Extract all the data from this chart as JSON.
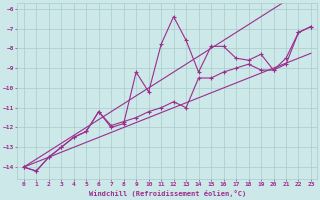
{
  "x": [
    0,
    1,
    2,
    3,
    4,
    5,
    6,
    7,
    8,
    9,
    10,
    11,
    12,
    13,
    14,
    15,
    16,
    17,
    18,
    19,
    20,
    21,
    22,
    23
  ],
  "y_main": [
    -14.0,
    -14.2,
    -13.5,
    -13.0,
    -12.5,
    -12.2,
    -11.2,
    -12.0,
    -11.8,
    -9.2,
    -10.2,
    -7.8,
    -6.4,
    -7.6,
    -9.2,
    -7.9,
    -7.9,
    -8.5,
    -8.6,
    -8.3,
    -9.1,
    -8.5,
    -7.2,
    -6.9
  ],
  "y_low": [
    -14.0,
    -14.2,
    -13.5,
    -13.0,
    -12.5,
    -12.2,
    -11.2,
    -11.9,
    -11.7,
    -11.5,
    -11.2,
    -11.0,
    -10.7,
    -11.0,
    -9.5,
    -9.5,
    -9.2,
    -9.0,
    -8.8,
    -9.1,
    -9.1,
    -8.8,
    -7.2,
    -6.9
  ],
  "y_trend1": [
    -14.0,
    -13.75,
    -13.5,
    -13.25,
    -13.0,
    -12.75,
    -12.5,
    -12.25,
    -12.0,
    -11.75,
    -11.5,
    -11.25,
    -11.0,
    -10.75,
    -10.5,
    -10.25,
    -10.0,
    -9.75,
    -9.5,
    -9.25,
    -9.0,
    -8.75,
    -8.5,
    -8.25
  ],
  "y_trend2": [
    -14.0,
    -13.6,
    -13.2,
    -12.8,
    -12.4,
    -12.0,
    -11.6,
    -11.2,
    -10.8,
    -10.4,
    -10.0,
    -9.6,
    -9.2,
    -8.8,
    -8.4,
    -8.0,
    -7.6,
    -7.2,
    -6.8,
    -6.4,
    -6.0,
    -5.6,
    -5.2,
    -4.8
  ],
  "line_color": "#9b2d8e",
  "bg_color": "#cce8e8",
  "grid_color": "#aacccc",
  "xlabel": "Windchill (Refroidissement éolien,°C)",
  "xlim": [
    -0.5,
    23.5
  ],
  "ylim": [
    -14.6,
    -5.7
  ],
  "yticks": [
    -14,
    -13,
    -12,
    -11,
    -10,
    -9,
    -8,
    -7,
    -6
  ],
  "xticks": [
    0,
    1,
    2,
    3,
    4,
    5,
    6,
    7,
    8,
    9,
    10,
    11,
    12,
    13,
    14,
    15,
    16,
    17,
    18,
    19,
    20,
    21,
    22,
    23
  ]
}
